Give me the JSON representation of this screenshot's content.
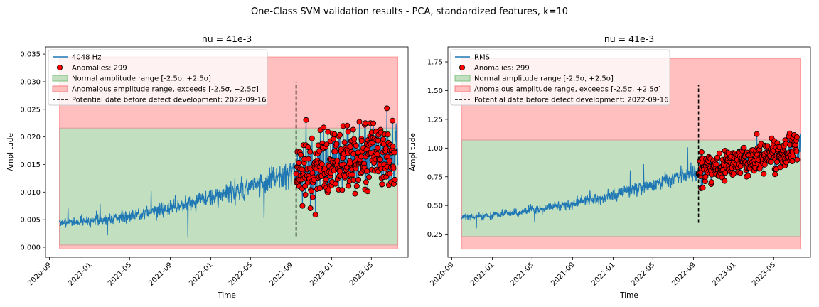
{
  "figure": {
    "suptitle": "One-Class SVM validation results - PCA, standardized features, k=10"
  },
  "chart_data": [
    {
      "type": "line",
      "title": "nu = 41e-3",
      "xlabel": "Time",
      "ylabel": "Amplitude",
      "x_range": [
        "2020-08-20",
        "2023-08-20"
      ],
      "ylim": [
        -0.0018,
        0.0363
      ],
      "x_ticks": [
        "2020-09",
        "2021-01",
        "2021-05",
        "2021-09",
        "2022-01",
        "2022-05",
        "2022-09",
        "2023-01",
        "2023-05"
      ],
      "y_ticks": [
        "0.000",
        "0.005",
        "0.010",
        "0.015",
        "0.020",
        "0.025",
        "0.030",
        "0.035"
      ],
      "grid": false,
      "legend_position": "top-left",
      "series": {
        "name": "4048 Hz",
        "color": "#1f77b4",
        "start": "2020-10-01",
        "end": "2023-07-20",
        "start_level": 0.0045,
        "end_level": 0.0175,
        "defect_level": 0.0135,
        "pre_noise": 0.0011,
        "post_noise": 0.0048,
        "seed": 7
      },
      "anomalies": {
        "label": "Anomalies: 299",
        "count": 299,
        "color": "#ff0000",
        "edge": "#000000"
      },
      "normal_range": {
        "label": "Normal amplitude range [-2.5σ, +2.5σ]",
        "low": 0.0004,
        "high": 0.0216,
        "color": "#2ca02c"
      },
      "anomalous_range": {
        "label": "Anomalous amplitude range, exceeds [-2.5σ, +2.5σ]",
        "low": -0.0003,
        "high": 0.0345,
        "color": "#ff0000"
      },
      "defect_line": {
        "label": "Potential date before defect development: 2022-09-16",
        "date": "2022-09-16",
        "ymin": 0.002,
        "ymax": 0.03
      }
    },
    {
      "type": "line",
      "title": "nu = 41e-3",
      "xlabel": "Time",
      "ylabel": "Amplitude",
      "x_range": [
        "2020-08-20",
        "2023-08-20"
      ],
      "ylim": [
        0.05,
        1.88
      ],
      "x_ticks": [
        "2020-09",
        "2021-01",
        "2021-05",
        "2021-09",
        "2022-01",
        "2022-05",
        "2022-09",
        "2023-01",
        "2023-05"
      ],
      "y_ticks": [
        "0.25",
        "0.50",
        "0.75",
        "1.00",
        "1.25",
        "1.50",
        "1.75"
      ],
      "grid": false,
      "legend_position": "top-left",
      "series": {
        "name": "RMS",
        "color": "#1f77b4",
        "start": "2020-10-01",
        "end": "2023-07-20",
        "start_level": 0.4,
        "end_level": 1.0,
        "defect_level": 0.8,
        "pre_noise": 0.035,
        "post_noise": 0.11,
        "seed": 13
      },
      "anomalies": {
        "label": "Anomalies: 299",
        "count": 299,
        "color": "#ff0000",
        "edge": "#000000"
      },
      "normal_range": {
        "label": "Normal amplitude range [-2.5σ, +2.5σ]",
        "low": 0.23,
        "high": 1.07,
        "color": "#2ca02c"
      },
      "anomalous_range": {
        "label": "Anomalous amplitude range, exceeds [-2.5σ, +2.5σ]",
        "low": 0.12,
        "high": 1.78,
        "color": "#ff0000"
      },
      "defect_line": {
        "label": "Potential date before defect development: 2022-09-16",
        "date": "2022-09-16",
        "ymin": 0.35,
        "ymax": 1.55
      }
    }
  ]
}
